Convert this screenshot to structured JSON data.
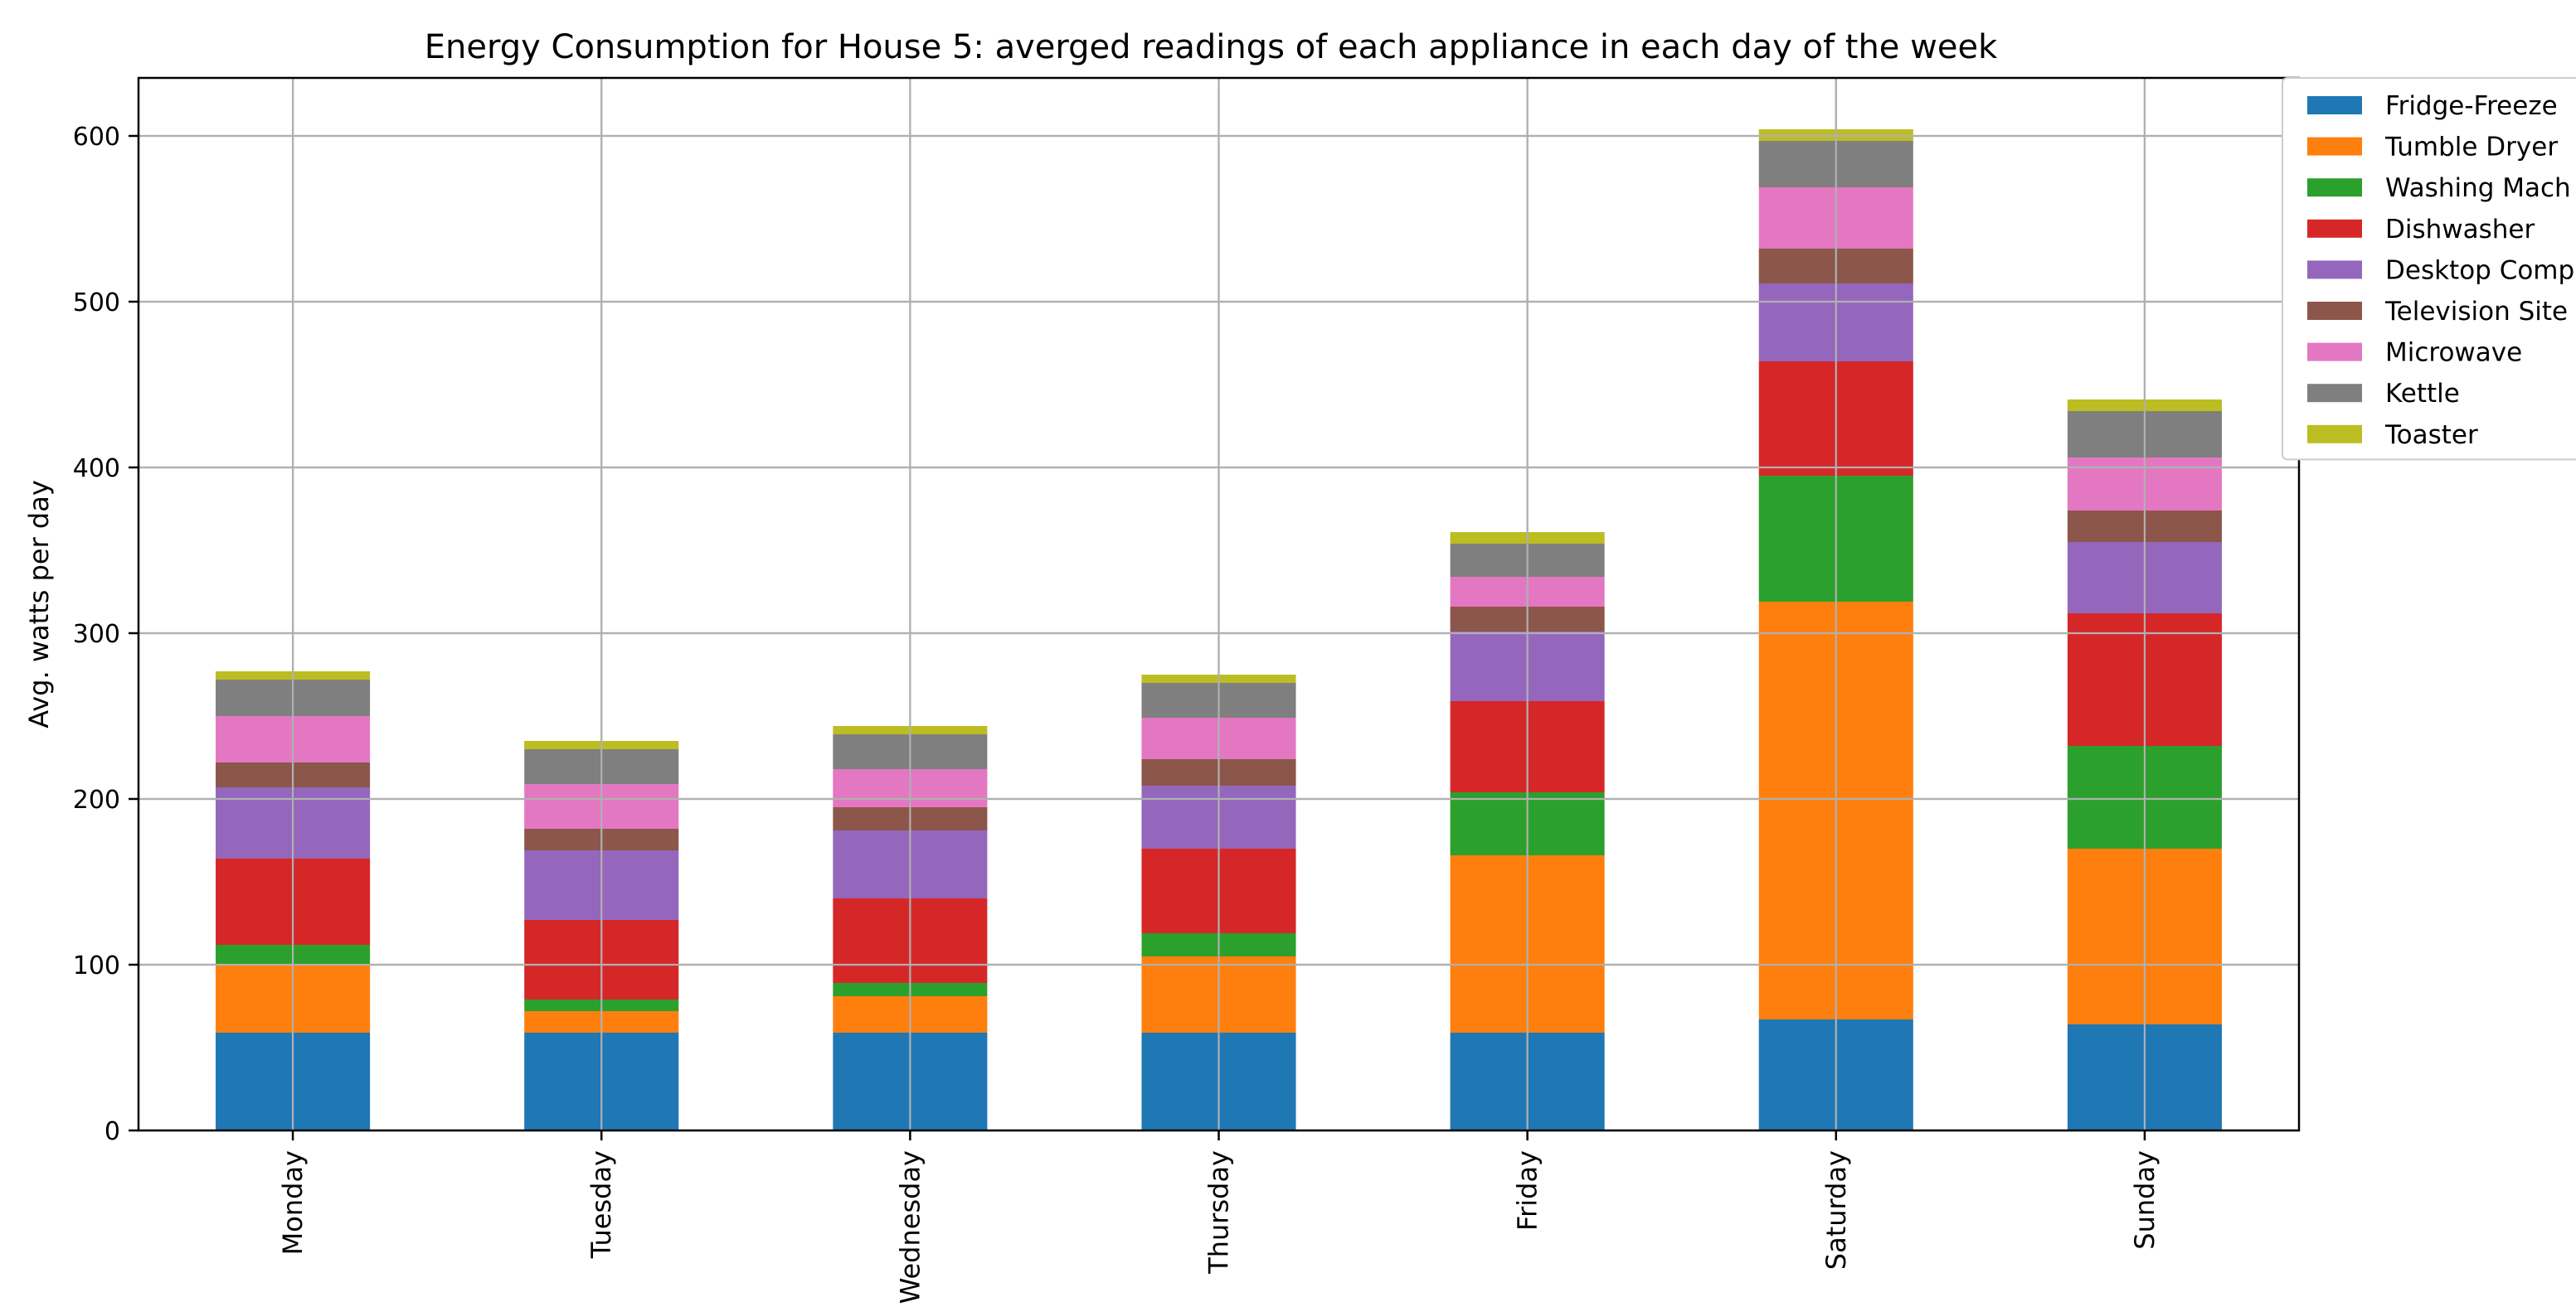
{
  "chart_data": {
    "type": "bar",
    "stacked": true,
    "title": "Energy Consumption for House 5: averged readings of each appliance in each day of the week",
    "xlabel": "",
    "ylabel": "Avg. watts per day",
    "ylim": [
      0,
      635
    ],
    "yticks": [
      0,
      100,
      200,
      300,
      400,
      500,
      600
    ],
    "grid": true,
    "legend_position": "upper-right-outside",
    "categories": [
      "Monday",
      "Tuesday",
      "Wednesday",
      "Thursday",
      "Friday",
      "Saturday",
      "Sunday"
    ],
    "series": [
      {
        "name": "Fridge-Freezer",
        "legend_label": "Fridge-Freeze",
        "color": "#1f77b4",
        "values": [
          59,
          59,
          59,
          59,
          59,
          67,
          64
        ]
      },
      {
        "name": "Tumble Dryer",
        "legend_label": "Tumble Dryer",
        "color": "#ff7f0e",
        "values": [
          41,
          13,
          22,
          46,
          107,
          252,
          106
        ]
      },
      {
        "name": "Washing Machine",
        "legend_label": "Washing Mach",
        "color": "#2ca02c",
        "values": [
          12,
          7,
          8,
          14,
          38,
          76,
          62
        ]
      },
      {
        "name": "Dishwasher",
        "legend_label": "Dishwasher",
        "color": "#d62728",
        "values": [
          52,
          48,
          51,
          51,
          55,
          69,
          80
        ]
      },
      {
        "name": "Desktop Computer",
        "legend_label": "Desktop Comp",
        "color": "#9467bd",
        "values": [
          43,
          42,
          41,
          38,
          42,
          47,
          43
        ]
      },
      {
        "name": "Television Site",
        "legend_label": "Television Site",
        "color": "#8c564b",
        "values": [
          15,
          13,
          14,
          16,
          15,
          21,
          19
        ]
      },
      {
        "name": "Microwave",
        "legend_label": "Microwave",
        "color": "#e377c2",
        "values": [
          28,
          27,
          23,
          25,
          18,
          37,
          32
        ]
      },
      {
        "name": "Kettle",
        "legend_label": "Kettle",
        "color": "#7f7f7f",
        "values": [
          22,
          21,
          21,
          21,
          20,
          28,
          28
        ]
      },
      {
        "name": "Toaster",
        "legend_label": "Toaster",
        "color": "#bcbd22",
        "values": [
          5,
          5,
          5,
          5,
          7,
          7,
          7
        ]
      }
    ]
  }
}
